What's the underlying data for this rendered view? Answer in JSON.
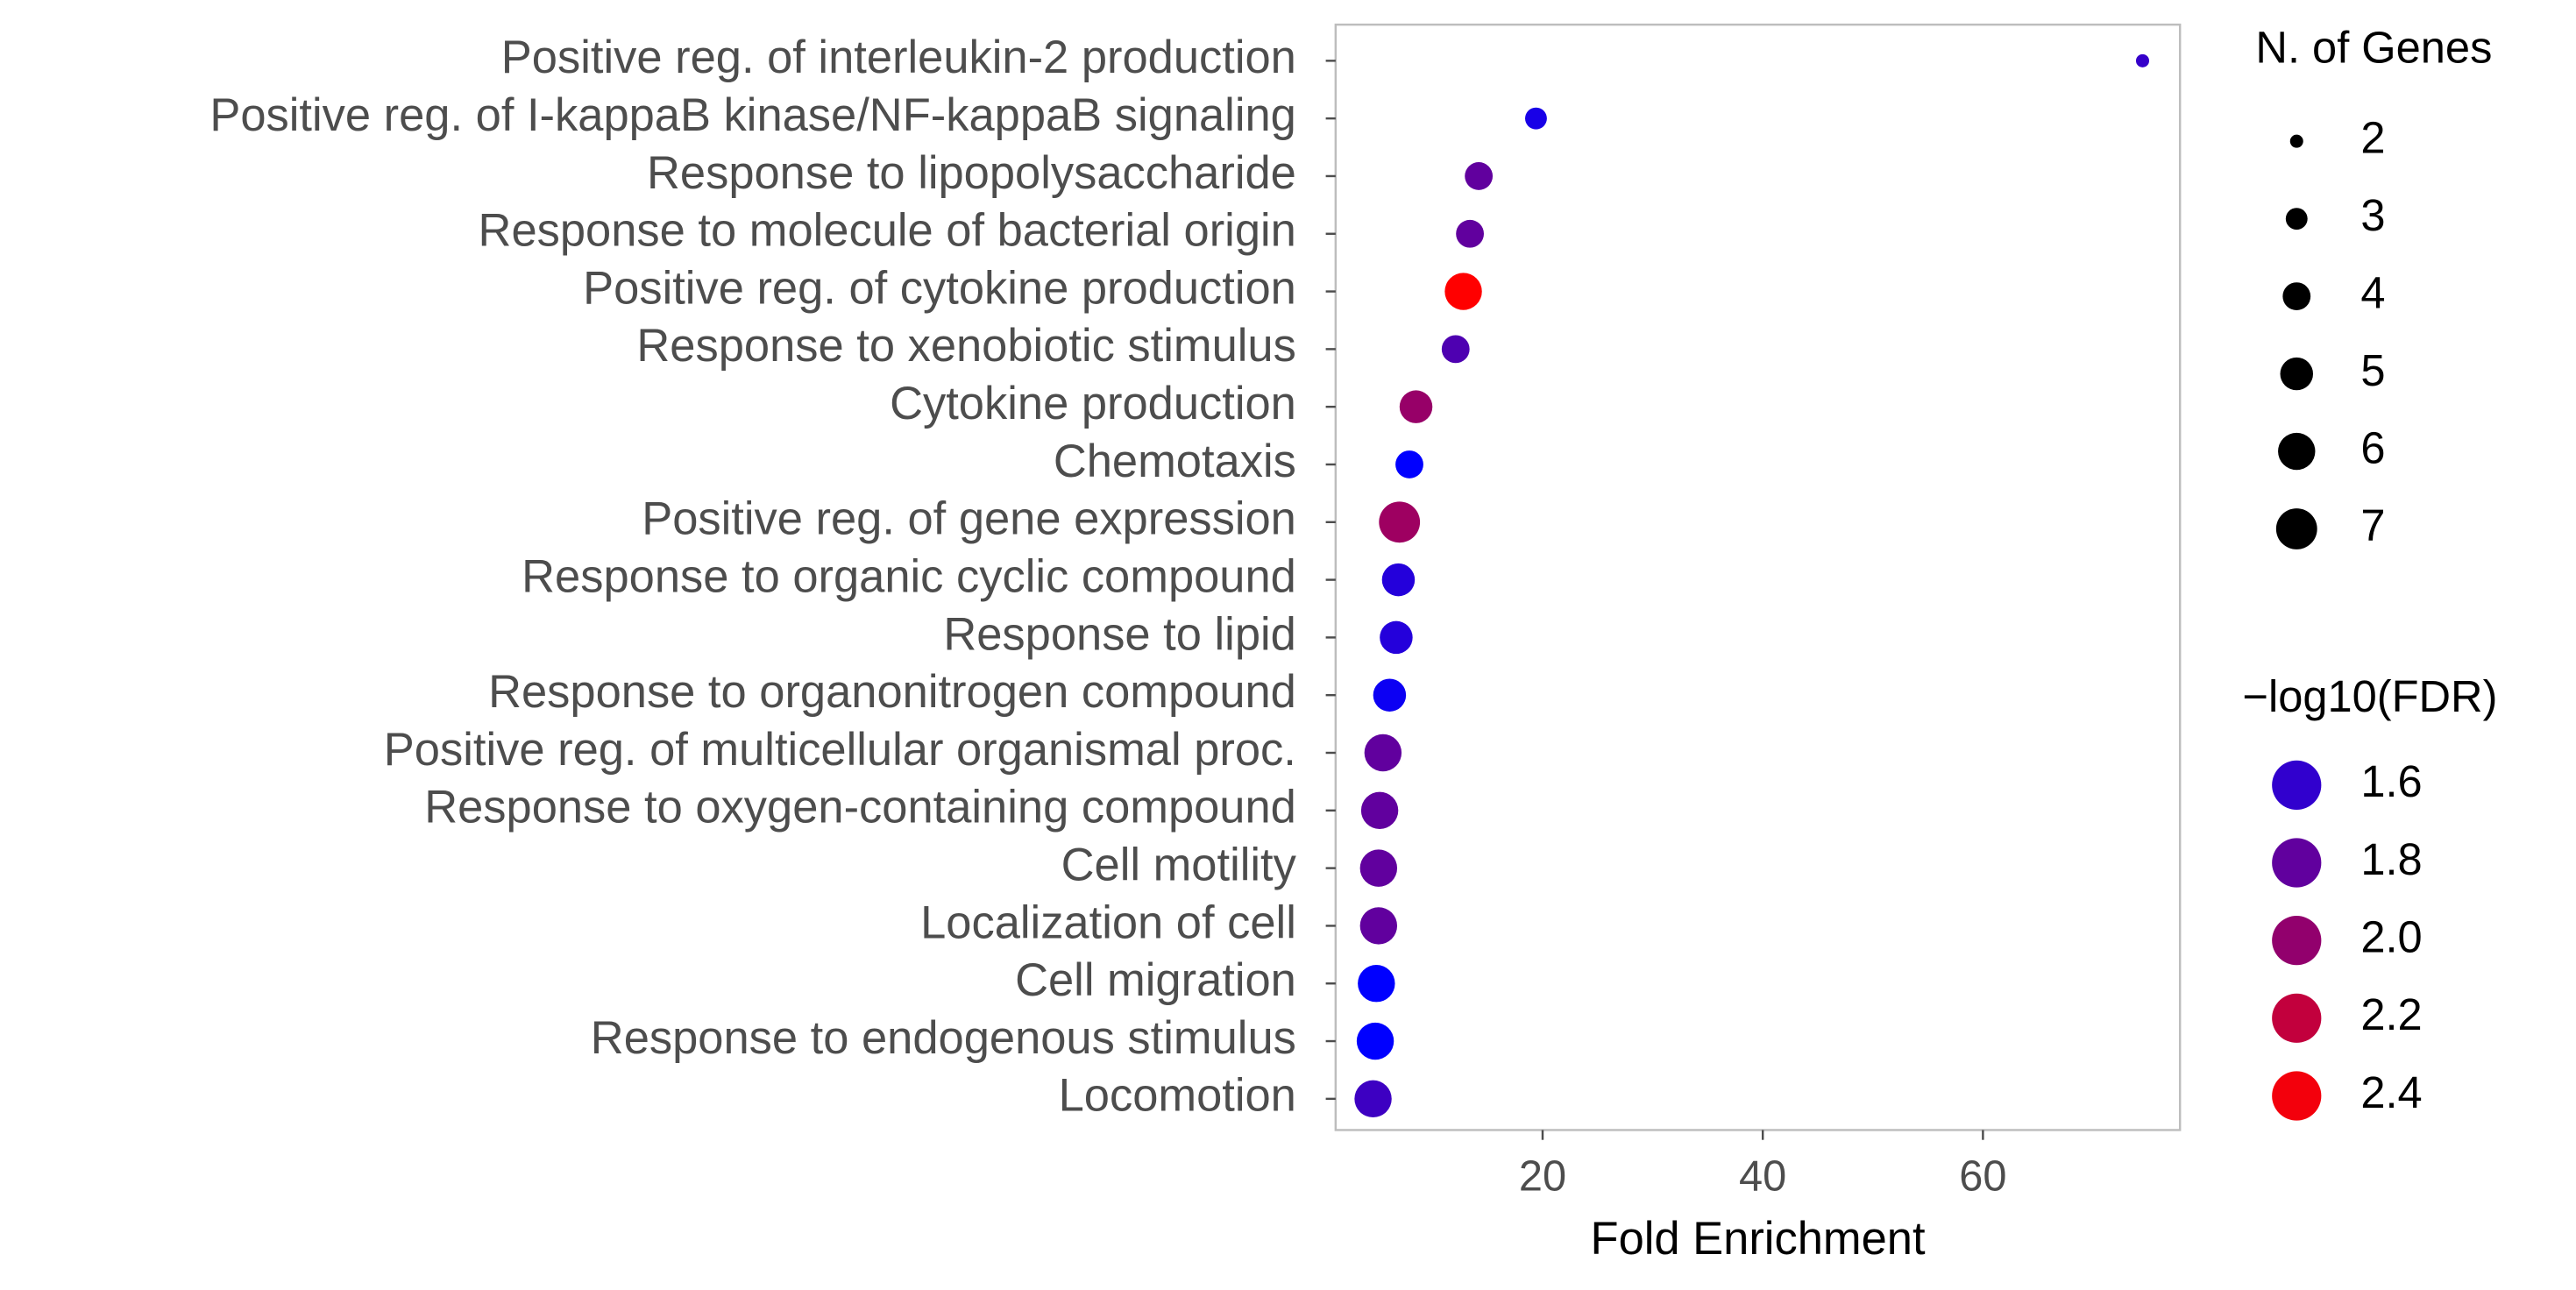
{
  "chart_data": {
    "type": "bubble",
    "x_label": "Fold Enrichment",
    "categories": [
      "Positive reg. of interleukin-2 production",
      "Positive reg. of I-kappaB kinase/NF-kappaB signaling",
      "Response to lipopolysaccharide",
      "Response to molecule of bacterial origin",
      "Positive reg. of cytokine production",
      "Response to xenobiotic stimulus",
      "Cytokine production",
      "Chemotaxis",
      "Positive reg. of gene expression",
      "Response to organic cyclic compound",
      "Response to lipid",
      "Response to organonitrogen compound",
      "Positive reg. of multicellular organismal proc.",
      "Response to oxygen-containing compound",
      "Cell motility",
      "Localization of cell",
      "Cell migration",
      "Response to endogenous stimulus",
      "Locomotion"
    ],
    "values": [
      74.5,
      19.4,
      14.2,
      13.4,
      12.8,
      12.1,
      8.5,
      7.9,
      7.0,
      6.9,
      6.7,
      6.1,
      5.5,
      5.2,
      5.1,
      5.1,
      4.9,
      4.8,
      4.6
    ],
    "sizes": [
      2,
      3,
      4,
      4,
      6,
      4,
      5,
      4,
      7,
      5,
      5,
      5,
      6,
      6,
      6,
      6,
      6,
      6,
      6
    ],
    "color_values": [
      1.62,
      1.5,
      1.8,
      1.8,
      2.45,
      1.72,
      2.02,
      1.4,
      2.05,
      1.55,
      1.55,
      1.45,
      1.8,
      1.8,
      1.8,
      1.8,
      1.4,
      1.4,
      1.65
    ],
    "xlim": [
      1.2,
      77.9
    ],
    "xticks": [
      20,
      40,
      60
    ],
    "grid": false,
    "size_legend": {
      "title": "N. of Genes",
      "ticks": [
        2,
        3,
        4,
        5,
        6,
        7
      ]
    },
    "color_legend": {
      "title": "−log10(FDR)",
      "ticks": [
        1.6,
        1.8,
        {
          "value": 2,
          "label": "2.0"
        },
        2.2,
        2.4
      ]
    },
    "color_lim": [
      1.4,
      2.45
    ],
    "color_low": "#0000ff",
    "color_high": "#ff0000"
  }
}
